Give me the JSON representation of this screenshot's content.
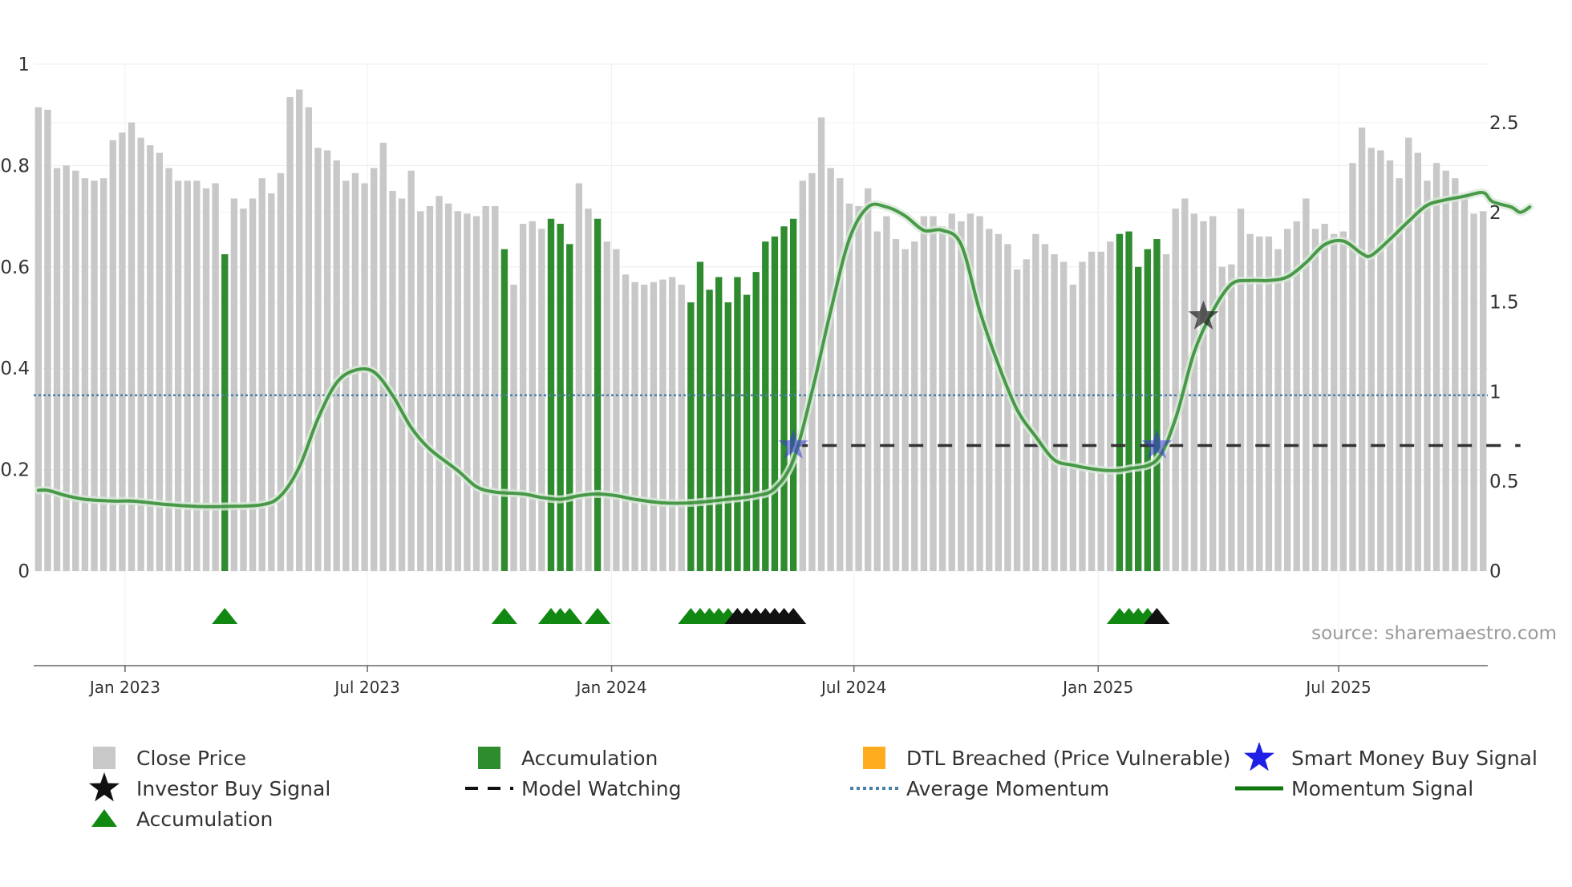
{
  "chart_data": {
    "type": "bar",
    "title": "",
    "source": "source: sharemaestro.com",
    "colors": {
      "close": "#c8c8c8",
      "accumulation": "#2e8b2e",
      "momentum": "#2e8b2e",
      "average": "#4a7fa8",
      "watch": "#333333",
      "smart_star": "#3a3ad6",
      "investor_star": "#222222",
      "triangle_green": "#118811",
      "triangle_black": "#111111",
      "dtl": "#ffad1f"
    },
    "left_axis": {
      "ylim": [
        0,
        1
      ],
      "ticks": [
        "0",
        "0.2",
        "0.4",
        "0.6",
        "0.8",
        "1"
      ],
      "tick_values": [
        0,
        0.2,
        0.4,
        0.6,
        0.8,
        1
      ]
    },
    "right_axis": {
      "ylim": [
        0,
        2.83
      ],
      "ticks": [
        "0",
        "0.5",
        "1",
        "1.5",
        "2",
        "2.5"
      ],
      "tick_values": [
        0,
        0.5,
        1,
        1.5,
        2,
        2.5
      ]
    },
    "x_ticks": [
      {
        "label": "Jan 2023",
        "index": 9.3
      },
      {
        "label": "Jul 2023",
        "index": 35.3
      },
      {
        "label": "Jan 2024",
        "index": 61.5
      },
      {
        "label": "Jul 2024",
        "index": 87.5
      },
      {
        "label": "Jan 2025",
        "index": 113.7
      },
      {
        "label": "Jul 2025",
        "index": 139.5
      }
    ],
    "close_prices": [
      0.915,
      0.91,
      0.795,
      0.8,
      0.79,
      0.775,
      0.77,
      0.775,
      0.85,
      0.865,
      0.885,
      0.855,
      0.84,
      0.825,
      0.795,
      0.77,
      0.77,
      0.77,
      0.755,
      0.765,
      0.625,
      0.735,
      0.715,
      0.735,
      0.775,
      0.745,
      0.785,
      0.935,
      0.95,
      0.915,
      0.835,
      0.83,
      0.81,
      0.77,
      0.785,
      0.765,
      0.795,
      0.845,
      0.75,
      0.735,
      0.79,
      0.71,
      0.72,
      0.74,
      0.725,
      0.71,
      0.705,
      0.7,
      0.72,
      0.72,
      0.635,
      0.565,
      0.685,
      0.69,
      0.675,
      0.695,
      0.685,
      0.645,
      0.765,
      0.715,
      0.695,
      0.65,
      0.635,
      0.585,
      0.57,
      0.565,
      0.57,
      0.575,
      0.58,
      0.565,
      0.53,
      0.61,
      0.555,
      0.58,
      0.53,
      0.58,
      0.545,
      0.59,
      0.65,
      0.66,
      0.68,
      0.695,
      0.77,
      0.785,
      0.895,
      0.795,
      0.775,
      0.725,
      0.72,
      0.755,
      0.67,
      0.7,
      0.655,
      0.635,
      0.65,
      0.7,
      0.7,
      0.68,
      0.705,
      0.69,
      0.705,
      0.7,
      0.675,
      0.665,
      0.645,
      0.595,
      0.615,
      0.665,
      0.645,
      0.625,
      0.61,
      0.565,
      0.61,
      0.63,
      0.63,
      0.65,
      0.665,
      0.67,
      0.6,
      0.635,
      0.655,
      0.625,
      0.715,
      0.735,
      0.705,
      0.69,
      0.7,
      0.6,
      0.605,
      0.715,
      0.665,
      0.66,
      0.66,
      0.635,
      0.675,
      0.69,
      0.735,
      0.675,
      0.685,
      0.665,
      0.67,
      0.805,
      0.875,
      0.835,
      0.83,
      0.81,
      0.775,
      0.855,
      0.825,
      0.77,
      0.805,
      0.79,
      0.775,
      0.745,
      0.705,
      0.71
    ],
    "accumulation_indices": [
      20,
      50,
      55,
      56,
      57,
      60,
      70,
      71,
      72,
      73,
      74,
      75,
      76,
      77,
      78,
      79,
      80,
      81,
      116,
      117,
      118,
      119,
      120
    ],
    "momentum_points": [
      [
        0,
        0.45
      ],
      [
        1,
        0.45
      ],
      [
        3,
        0.42
      ],
      [
        5,
        0.4
      ],
      [
        8,
        0.39
      ],
      [
        10,
        0.39
      ],
      [
        14,
        0.37
      ],
      [
        17,
        0.36
      ],
      [
        20,
        0.36
      ],
      [
        24,
        0.37
      ],
      [
        26,
        0.42
      ],
      [
        28,
        0.58
      ],
      [
        30,
        0.85
      ],
      [
        32,
        1.05
      ],
      [
        34,
        1.12
      ],
      [
        36,
        1.11
      ],
      [
        38,
        0.98
      ],
      [
        40,
        0.8
      ],
      [
        42,
        0.68
      ],
      [
        45,
        0.56
      ],
      [
        47,
        0.47
      ],
      [
        49,
        0.44
      ],
      [
        52,
        0.43
      ],
      [
        54,
        0.41
      ],
      [
        56,
        0.4
      ],
      [
        58,
        0.42
      ],
      [
        60,
        0.43
      ],
      [
        62,
        0.42
      ],
      [
        64,
        0.4
      ],
      [
        67,
        0.38
      ],
      [
        70,
        0.38
      ],
      [
        74,
        0.4
      ],
      [
        77,
        0.42
      ],
      [
        79,
        0.46
      ],
      [
        81,
        0.62
      ],
      [
        83,
        1.0
      ],
      [
        85,
        1.45
      ],
      [
        87,
        1.85
      ],
      [
        89,
        2.03
      ],
      [
        91,
        2.03
      ],
      [
        93,
        1.98
      ],
      [
        95,
        1.9
      ],
      [
        97,
        1.9
      ],
      [
        99,
        1.82
      ],
      [
        101,
        1.45
      ],
      [
        103,
        1.15
      ],
      [
        105,
        0.9
      ],
      [
        107,
        0.75
      ],
      [
        109,
        0.62
      ],
      [
        111,
        0.59
      ],
      [
        113,
        0.57
      ],
      [
        115,
        0.56
      ],
      [
        117,
        0.57
      ],
      [
        120,
        0.62
      ],
      [
        122,
        0.85
      ],
      [
        124,
        1.22
      ],
      [
        126,
        1.45
      ],
      [
        128,
        1.6
      ],
      [
        130,
        1.62
      ],
      [
        132,
        1.62
      ],
      [
        134,
        1.64
      ],
      [
        136,
        1.72
      ],
      [
        138,
        1.82
      ],
      [
        140,
        1.84
      ],
      [
        142,
        1.77
      ],
      [
        143,
        1.76
      ],
      [
        145,
        1.85
      ],
      [
        147,
        1.95
      ],
      [
        149,
        2.04
      ],
      [
        151,
        2.07
      ],
      [
        153,
        2.09
      ],
      [
        155,
        2.11
      ],
      [
        156,
        2.06
      ],
      [
        158,
        2.03
      ],
      [
        159,
        2.0
      ],
      [
        160,
        2.03
      ]
    ],
    "average_momentum": 0.98,
    "model_watching": {
      "start": 81,
      "end": 159,
      "value": 0.7
    },
    "smart_money_buy": [
      {
        "index": 81,
        "value": 0.7
      },
      {
        "index": 120,
        "value": 0.7
      }
    ],
    "investor_buy": [
      {
        "index": 125,
        "value": 1.42
      }
    ],
    "triangles_green": [
      20,
      50,
      55,
      56,
      57,
      60,
      70,
      71,
      72,
      73,
      74,
      116,
      117,
      118,
      119
    ],
    "triangles_black": [
      75,
      76,
      77,
      78,
      79,
      80,
      81,
      120
    ],
    "legend": [
      {
        "label": "Close Price",
        "marker": "square-grey"
      },
      {
        "label": "Accumulation",
        "marker": "square-green"
      },
      {
        "label": "DTL Breached (Price Vulnerable)",
        "marker": "square-orange"
      },
      {
        "label": "Smart Money Buy Signal",
        "marker": "star-blue"
      },
      {
        "label": "Investor Buy Signal",
        "marker": "star-black"
      },
      {
        "label": "Model Watching",
        "marker": "dash-black"
      },
      {
        "label": "Average Momentum",
        "marker": "dot-blue"
      },
      {
        "label": "Momentum Signal",
        "marker": "line-green"
      },
      {
        "label": "Accumulation",
        "marker": "triangle-green"
      }
    ]
  }
}
